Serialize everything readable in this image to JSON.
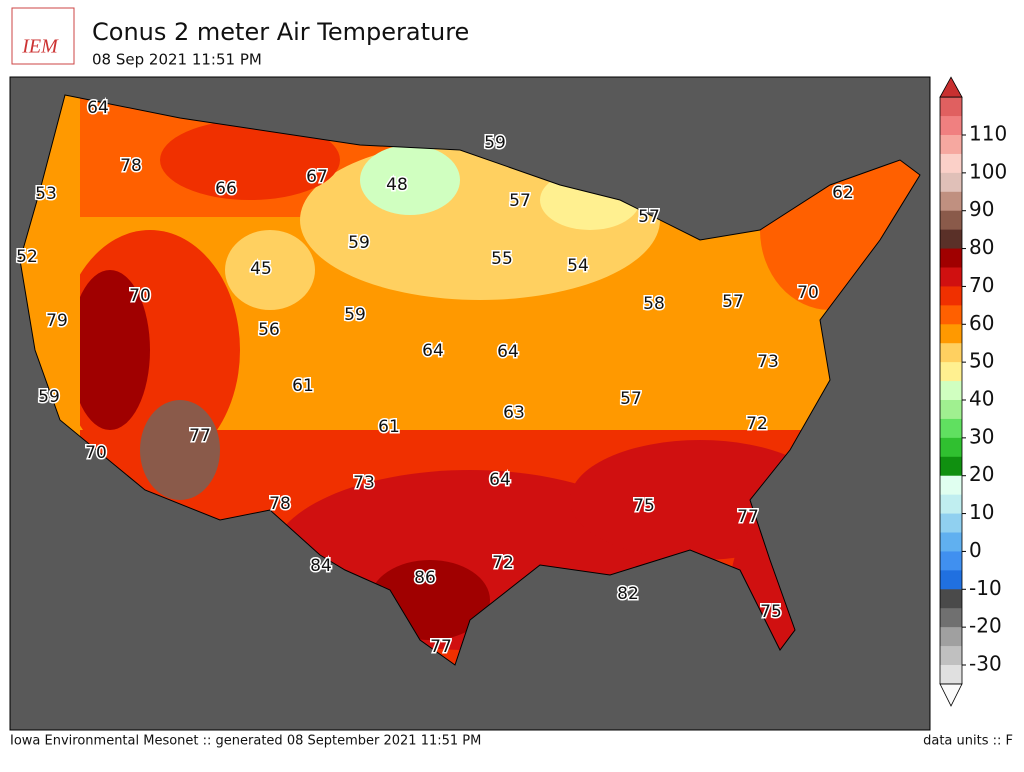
{
  "header": {
    "logo": "IEM",
    "title": "Conus 2 meter Air Temperature",
    "subtitle": "08 Sep 2021 11:51 PM"
  },
  "map": {
    "labels": [
      64,
      78,
      53,
      52,
      66,
      67,
      48,
      59,
      57,
      57,
      62,
      45,
      59,
      55,
      54,
      70,
      79,
      56,
      59,
      64,
      64,
      58,
      57,
      70,
      73,
      61,
      57,
      63,
      59,
      61,
      77,
      72,
      70,
      64,
      73,
      78,
      75,
      77,
      84,
      86,
      72,
      82,
      75,
      77
    ]
  },
  "colorbar": {
    "ticks": [
      110,
      100,
      90,
      80,
      70,
      60,
      50,
      40,
      30,
      20,
      10,
      0,
      -10,
      -20,
      -30
    ]
  },
  "footer": {
    "left": "Iowa Environmental Mesonet :: generated 08 September 2021 11:51 PM",
    "right": "data units :: F"
  }
}
